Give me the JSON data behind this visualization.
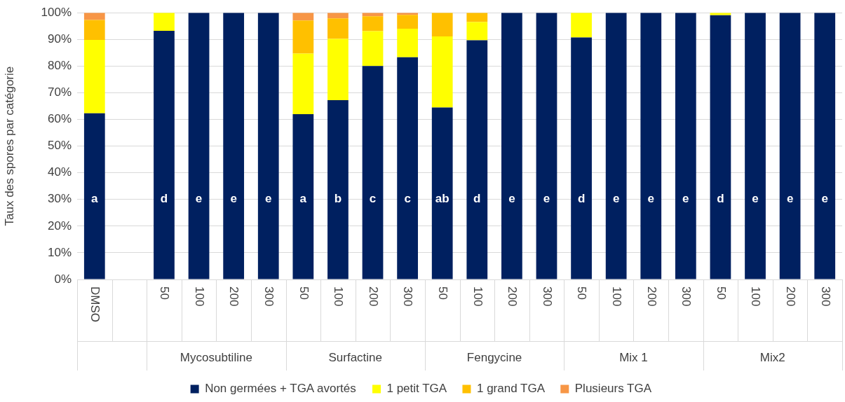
{
  "chart_data": {
    "type": "bar",
    "stacked": true,
    "ylabel": "Taux des spores par catégorie",
    "categories": [
      "DMSO",
      null,
      "50",
      "100",
      "200",
      "300",
      "50",
      "100",
      "200",
      "300",
      "50",
      "100",
      "200",
      "300",
      "50",
      "100",
      "200",
      "300",
      "50",
      "100",
      "200",
      "300"
    ],
    "series": [
      {
        "name": "Non germées + TGA avortés",
        "color": "#002060",
        "values": [
          62.3,
          null,
          93.2,
          100,
          100,
          100,
          62,
          67.2,
          80,
          83.3,
          64.5,
          89.7,
          100,
          100,
          90.7,
          100,
          100,
          100,
          99.1,
          100,
          100,
          100
        ],
        "value_labels": [
          "a",
          null,
          "d",
          "e",
          "e",
          "e",
          "a",
          "b",
          "c",
          "c",
          "ab",
          "d",
          "e",
          "e",
          "d",
          "e",
          "e",
          "e",
          "d",
          "e",
          "e",
          "e"
        ]
      },
      {
        "name": "1 petit TGA",
        "color": "#ffff00",
        "values": [
          27.5,
          null,
          6.8,
          0,
          0,
          0,
          22.7,
          23,
          13.1,
          10.7,
          26.6,
          6.8,
          0,
          0,
          9.3,
          0,
          0,
          0,
          0.9,
          0,
          0,
          0
        ]
      },
      {
        "name": "1 grand TGA",
        "color": "#ffc000",
        "values": [
          7.5,
          null,
          0,
          0,
          0,
          0,
          12.4,
          7.7,
          5.6,
          5.2,
          8.9,
          3.5,
          0,
          0,
          0,
          0,
          0,
          0,
          0,
          0,
          0,
          0
        ]
      },
      {
        "name": "Plusieurs TGA",
        "color": "#f79646",
        "values": [
          2.7,
          null,
          0,
          0,
          0,
          0,
          2.9,
          2.1,
          1.3,
          0.8,
          0,
          0,
          0,
          0,
          0,
          0,
          0,
          0,
          0,
          0,
          0,
          0
        ]
      }
    ],
    "ylim": [
      0,
      100
    ],
    "yticks": [
      {
        "value": 0,
        "label": "0%"
      },
      {
        "value": 10,
        "label": "10%"
      },
      {
        "value": 20,
        "label": "20%"
      },
      {
        "value": 30,
        "label": "30%"
      },
      {
        "value": 40,
        "label": "40%"
      },
      {
        "value": 50,
        "label": "50%"
      },
      {
        "value": 60,
        "label": "60%"
      },
      {
        "value": 70,
        "label": "70%"
      },
      {
        "value": 80,
        "label": "80%"
      },
      {
        "value": 90,
        "label": "90%"
      },
      {
        "value": 100,
        "label": "100%"
      }
    ],
    "grid": "y",
    "legend": "bottom",
    "annotations": [
      "Mycosubtiline",
      "Surfactine",
      "Fengycine",
      "Mix 1",
      "Mix2"
    ]
  }
}
